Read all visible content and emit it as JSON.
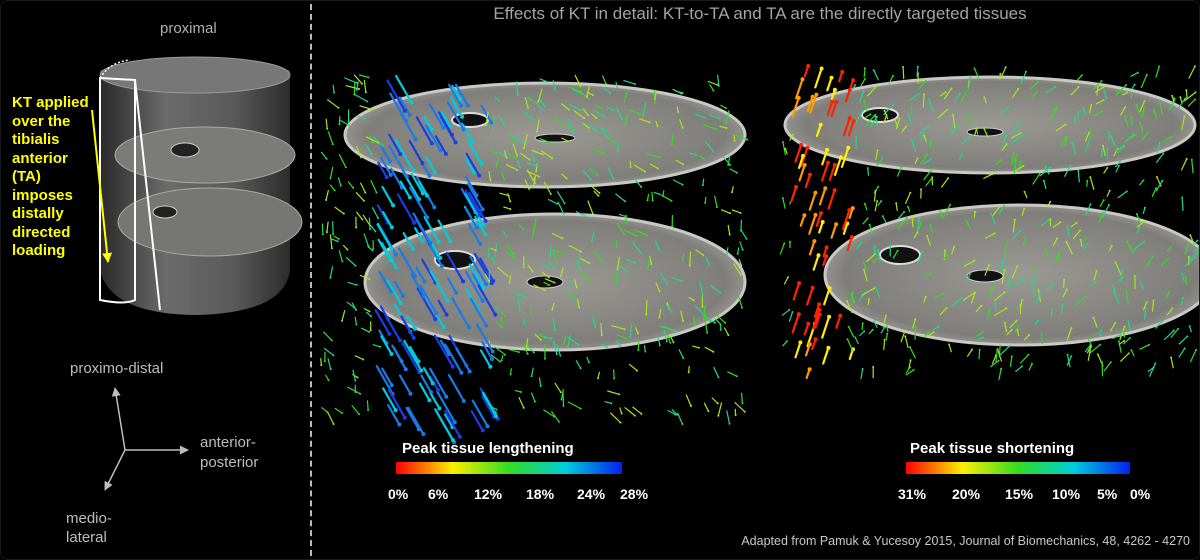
{
  "title": "Effects of KT in detail: KT-to-TA and TA are the directly targeted tissues",
  "proximal_label": "proximal",
  "kt_note_lines": [
    "KT applied",
    "over the",
    "tibialis",
    "anterior",
    "(TA)",
    "imposes",
    "distally",
    "directed",
    "loading"
  ],
  "axes": {
    "proximo_distal": "proximo-distal",
    "anterior_posterior": [
      "anterior-",
      "posterior"
    ],
    "medio_lateral": [
      "medio-",
      "lateral"
    ]
  },
  "legend_lengthening": {
    "title": "Peak tissue lengthening",
    "ticks": [
      "0%",
      "6%",
      "12%",
      "18%",
      "24%",
      "28%"
    ],
    "colors": [
      "#ff0000",
      "#ffee00",
      "#33dd22",
      "#00ccdd",
      "#0022ee"
    ]
  },
  "legend_shortening": {
    "title": "Peak tissue shortening",
    "ticks": [
      "31%",
      "20%",
      "15%",
      "10%",
      "5%",
      "0%"
    ],
    "colors": [
      "#ff0000",
      "#ffee00",
      "#33dd22",
      "#00ccdd",
      "#0022ee"
    ]
  },
  "credit": "Adapted from Pamuk & Yucesoy 2015, Journal of Biomechanics, 48, 4262 - 4270",
  "colors": {
    "background": "#000000",
    "kt_highlight": "#ffff00",
    "divider": "#bbbbbb",
    "tissue": "#8a8a86"
  }
}
